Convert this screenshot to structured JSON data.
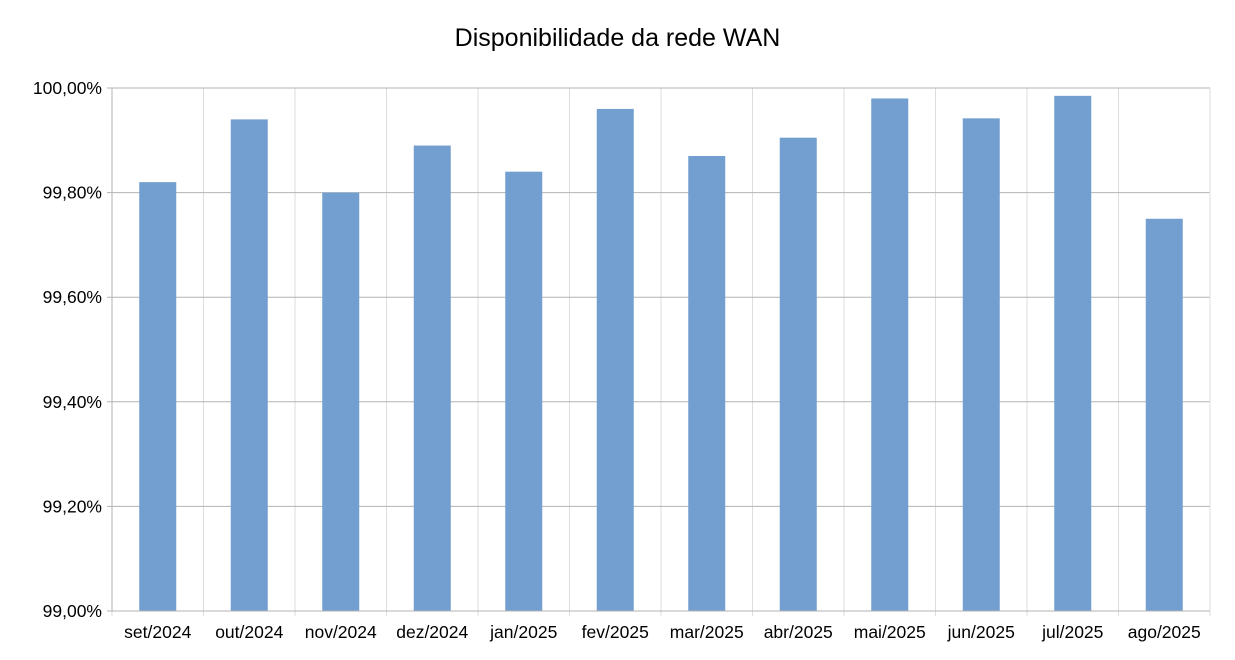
{
  "chart_data": {
    "type": "bar",
    "title": "Disponibilidade da rede WAN",
    "xlabel": "",
    "ylabel": "",
    "categories": [
      "set/2024",
      "out/2024",
      "nov/2024",
      "dez/2024",
      "jan/2025",
      "fev/2025",
      "mar/2025",
      "abr/2025",
      "mai/2025",
      "jun/2025",
      "jul/2025",
      "ago/2025"
    ],
    "values": [
      99.82,
      99.94,
      99.8,
      99.89,
      99.84,
      99.96,
      99.87,
      99.905,
      99.98,
      99.942,
      99.985,
      99.75
    ],
    "ylim": [
      99.0,
      100.0
    ],
    "y_ticks": [
      99.0,
      99.2,
      99.4,
      99.6,
      99.8,
      100.0
    ],
    "y_tick_labels": [
      "99,00%",
      "99,20%",
      "99,40%",
      "99,60%",
      "99,80%",
      "100,00%"
    ],
    "grid": true,
    "legend": "none",
    "bar_color": "#729fcf",
    "grid_color": "#b3b3b3",
    "axis_color": "#b3b3b3"
  }
}
